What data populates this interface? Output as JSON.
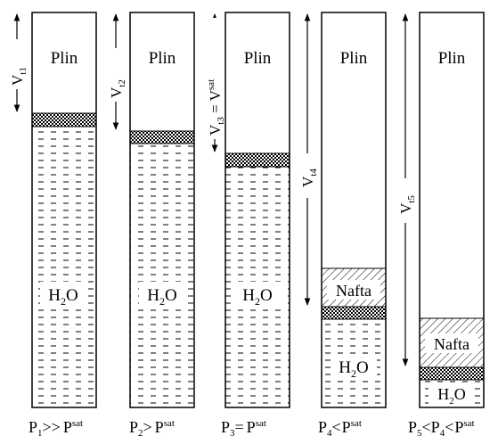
{
  "cylinders": [
    {
      "gas_label": "Plin",
      "volume_label": "V",
      "volume_sub": "t1",
      "volume_sup": "",
      "oil_label": "",
      "water_label_pre": "H",
      "water_label_sub": "2",
      "water_label_post": "O",
      "pressure_pre": "P",
      "pressure_sub": "1",
      "pressure_rel": ">>",
      "pressure_ref": "P",
      "pressure_ref_sup": "sat",
      "pressure_mid": "",
      "pressure_mid_sub": "",
      "pressure_mid_rel": ""
    },
    {
      "gas_label": "Plin",
      "volume_label": "V",
      "volume_sub": "t2",
      "volume_sup": "",
      "oil_label": "",
      "water_label_pre": "H",
      "water_label_sub": "2",
      "water_label_post": "O",
      "pressure_pre": "P",
      "pressure_sub": "2",
      "pressure_rel": ">",
      "pressure_ref": "P",
      "pressure_ref_sup": "sat",
      "pressure_mid": "",
      "pressure_mid_sub": "",
      "pressure_mid_rel": ""
    },
    {
      "gas_label": "Plin",
      "volume_label": "V",
      "volume_sub": "t3",
      "volume_suffix": " = V",
      "volume_sup": "sat",
      "oil_label": "",
      "water_label_pre": "H",
      "water_label_sub": "2",
      "water_label_post": "O",
      "pressure_pre": "P",
      "pressure_sub": "3",
      "pressure_rel": "=",
      "pressure_ref": "P",
      "pressure_ref_sup": "sat",
      "pressure_mid": "",
      "pressure_mid_sub": "",
      "pressure_mid_rel": ""
    },
    {
      "gas_label": "Plin",
      "volume_label": "V",
      "volume_sub": "t4",
      "volume_sup": "",
      "oil_label": "Nafta",
      "water_label_pre": "H",
      "water_label_sub": "2",
      "water_label_post": "O",
      "pressure_pre": "P",
      "pressure_sub": "4",
      "pressure_rel": "<",
      "pressure_ref": "P",
      "pressure_ref_sup": "sat",
      "pressure_mid": "",
      "pressure_mid_sub": "",
      "pressure_mid_rel": ""
    },
    {
      "gas_label": "Plin",
      "volume_label": "V",
      "volume_sub": "t5",
      "volume_sup": "",
      "oil_label": "Nafta",
      "water_label_pre": "H",
      "water_label_sub": "2",
      "water_label_post": "O",
      "pressure_pre": "P",
      "pressure_sub": "5",
      "pressure_rel": "<",
      "pressure_mid": "P",
      "pressure_mid_sub": "4",
      "pressure_mid_rel": "<",
      "pressure_ref": "P",
      "pressure_ref_sup": "sat"
    }
  ]
}
